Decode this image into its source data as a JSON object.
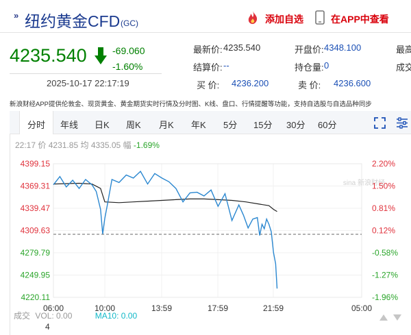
{
  "header": {
    "title_mark": "»",
    "title": "纽约黄金CFD",
    "code": "(GC)",
    "add_watchlist": "添加自选",
    "open_app": "在APP中查看"
  },
  "quote": {
    "price": "4235.540",
    "change": "-69.060",
    "change_pct": "-1.60%",
    "datetime": "2025-10-17 22:17:19",
    "fields": {
      "latest_label": "最新价:",
      "latest_value": "4235.540",
      "open_label": "开盘价:",
      "open_value": "4348.100",
      "high_label": "最高",
      "settle_label": "结算价:",
      "settle_value": "--",
      "oi_label": "持仓量:",
      "oi_value": "0",
      "volume_label": "成交",
      "bid_label": "买  价:",
      "bid_value": "4236.200",
      "ask_label": "卖  价:",
      "ask_value": "4236.600"
    },
    "colors": {
      "down": "#008000",
      "up": "#e0323c",
      "link": "#1a4fb5"
    }
  },
  "notice": "新浪财经APP提供伦敦金、现货黄金、黄金期货实时行情及分时图、K线、盘口、行情提醒等功能，支持自选股与自选品种同步",
  "tabs": [
    {
      "label": "分时",
      "active": true
    },
    {
      "label": "年线"
    },
    {
      "label": "日K"
    },
    {
      "label": "周K"
    },
    {
      "label": "月K"
    },
    {
      "label": "年K"
    },
    {
      "label": "5分"
    },
    {
      "label": "15分"
    },
    {
      "label": "30分"
    },
    {
      "label": "60分"
    }
  ],
  "info": {
    "time": "22:17",
    "price_label": "价",
    "price": "4231.85",
    "avg_label": "均",
    "avg": "4335.05",
    "range_label": "幅",
    "range": "-1.69%"
  },
  "volume_bar": {
    "label": "成交",
    "vol_text": "VOL: 0.00",
    "ma10_text": "MA10: 0.00",
    "value": "4"
  },
  "watermark": "sina 新浪财经",
  "icons": [
    "fire-icon",
    "phone-icon",
    "down-arrow-icon",
    "fullscreen-icon",
    "settings-icon",
    "scroll-left-icon",
    "scroll-right-icon"
  ],
  "chart_data": {
    "type": "line",
    "prev_close": 4304.6,
    "y_ticks": [
      "4399.15",
      "4369.31",
      "4339.47",
      "4309.63",
      "4279.79",
      "4249.95",
      "4220.11"
    ],
    "y_tick_values": [
      4399.15,
      4369.31,
      4339.47,
      4309.63,
      4279.79,
      4249.95,
      4220.11
    ],
    "pct_ticks": [
      "2.20%",
      "1.50%",
      "0.81%",
      "0.12%",
      "-0.58%",
      "-1.27%",
      "-1.96%"
    ],
    "x_ticks": [
      "06:00",
      "10:00",
      "13:59",
      "17:59",
      "21:59",
      "05:00"
    ],
    "ylim": [
      4220.11,
      4399.15
    ],
    "series": [
      {
        "x": [
          "06:00",
          "06:30",
          "07:00",
          "07:30",
          "08:00",
          "08:30",
          "09:00",
          "09:20",
          "09:40",
          "09:50",
          "10:00",
          "10:10",
          "10:30",
          "11:00",
          "11:30",
          "12:00",
          "12:30",
          "13:00",
          "13:30",
          "14:00",
          "14:30",
          "15:00",
          "15:30",
          "16:00",
          "16:30",
          "17:00",
          "17:30",
          "18:00",
          "18:30",
          "19:00",
          "19:30",
          "19:50",
          "20:10",
          "20:30",
          "20:50",
          "21:00",
          "21:10",
          "21:20",
          "21:30",
          "21:40",
          "21:50",
          "22:00",
          "22:10",
          "22:17"
        ],
        "values": [
          4371,
          4382,
          4368,
          4377,
          4366,
          4378,
          4371,
          4362,
          4338,
          4305,
          4326,
          4343,
          4378,
          4374,
          4384,
          4380,
          4389,
          4372,
          4386,
          4380,
          4375,
          4366,
          4348,
          4360,
          4361,
          4356,
          4364,
          4342,
          4359,
          4323,
          4344,
          4330,
          4313,
          4325,
          4327,
          4303,
          4318,
          4312,
          4325,
          4318,
          4308,
          4280,
          4265,
          4231.85
        ]
      },
      {
        "name": "均",
        "x": [
          "06:00",
          "08:00",
          "09:00",
          "09:40",
          "10:00",
          "11:00",
          "12:00",
          "13:00",
          "14:00",
          "15:00",
          "16:00",
          "17:00",
          "18:00",
          "19:00",
          "20:00",
          "21:00",
          "21:40",
          "22:00",
          "22:17"
        ],
        "values": [
          4372,
          4373,
          4372,
          4366,
          4348,
          4347,
          4348,
          4349,
          4350,
          4351,
          4352,
          4352,
          4351,
          4350,
          4348,
          4345,
          4343,
          4338,
          4335.05
        ]
      }
    ]
  }
}
